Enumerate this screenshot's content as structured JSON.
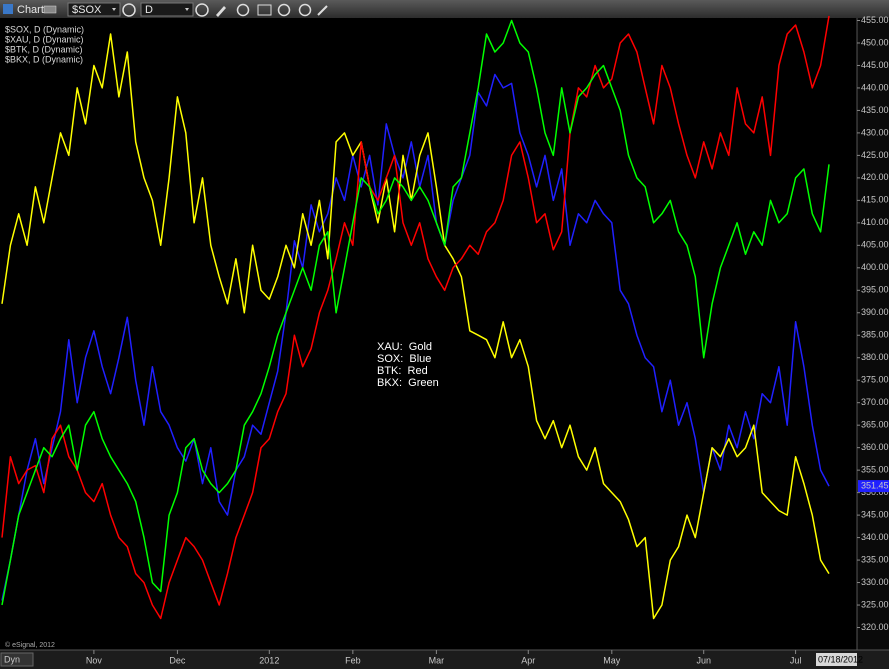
{
  "toolbar": {
    "title": "Chart",
    "symbol": "$SOX",
    "interval": "D"
  },
  "footer": {
    "mode": "Dyn",
    "copyright": "© eSignal, 2012",
    "date": "07/18/2012"
  },
  "chart_data": {
    "type": "line",
    "annotations": [
      "XAU:  Gold",
      "SOX:  Blue",
      "BTK:  Red",
      "BKX:  Green"
    ],
    "categories": [
      null,
      null,
      null,
      null,
      null,
      null,
      null,
      null,
      null,
      null,
      null,
      "Nov",
      null,
      null,
      null,
      null,
      null,
      null,
      null,
      null,
      null,
      "Dec",
      null,
      null,
      null,
      null,
      null,
      null,
      null,
      null,
      null,
      null,
      "2012",
      null,
      null,
      null,
      null,
      null,
      null,
      null,
      null,
      null,
      "Feb",
      null,
      null,
      null,
      null,
      null,
      null,
      null,
      null,
      null,
      "Mar",
      null,
      null,
      null,
      null,
      null,
      null,
      null,
      null,
      null,
      null,
      "Apr",
      null,
      null,
      null,
      null,
      null,
      null,
      null,
      null,
      null,
      "May",
      null,
      null,
      null,
      null,
      null,
      null,
      null,
      null,
      null,
      null,
      "Jun",
      null,
      null,
      null,
      null,
      null,
      null,
      null,
      null,
      null,
      null,
      "Jul",
      null,
      null,
      null,
      null
    ],
    "series": [
      {
        "name": "$SOX, D (Dynamic)",
        "color": "#2020ff",
        "values": [
          326,
          335,
          345,
          355,
          362,
          352,
          360,
          368,
          384,
          370,
          380,
          386,
          378,
          372,
          380,
          389,
          375,
          365,
          378,
          368,
          365,
          360,
          357,
          362,
          352,
          360,
          348,
          345,
          355,
          358,
          365,
          363,
          370,
          377,
          390,
          406,
          400,
          414,
          408,
          412,
          420,
          415,
          425,
          418,
          425,
          414,
          432,
          425,
          420,
          428,
          418,
          425,
          410,
          405,
          415,
          420,
          425,
          439,
          436,
          443,
          440,
          441,
          430,
          425,
          418,
          425,
          415,
          422,
          405,
          412,
          410,
          415,
          412,
          410,
          395,
          392,
          385,
          380,
          378,
          368,
          375,
          365,
          370,
          362,
          350,
          360,
          355,
          365,
          360,
          368,
          362,
          372,
          370,
          378,
          365,
          388,
          378,
          365,
          355,
          351.45
        ]
      },
      {
        "name": "$XAU, D (Dynamic)",
        "color": "#ffff00",
        "values": [
          392,
          405,
          412,
          405,
          418,
          410,
          420,
          430,
          425,
          440,
          432,
          445,
          440,
          452,
          438,
          448,
          428,
          420,
          415,
          405,
          420,
          438,
          430,
          410,
          420,
          405,
          398,
          392,
          402,
          390,
          405,
          395,
          393,
          398,
          405,
          400,
          412,
          405,
          415,
          402,
          428,
          430,
          425,
          428,
          418,
          410,
          420,
          408,
          425,
          415,
          425,
          430,
          418,
          405,
          402,
          398,
          386,
          385,
          384,
          380,
          388,
          380,
          384,
          378,
          366,
          362,
          366,
          360,
          365,
          358,
          355,
          360,
          352,
          350,
          348,
          344,
          338,
          340,
          322,
          325,
          335,
          338,
          345,
          340,
          350,
          360,
          358,
          362,
          358,
          360,
          365,
          350,
          348,
          346,
          345,
          358,
          352,
          345,
          335,
          332
        ]
      },
      {
        "name": "$BTK, D (Dynamic)",
        "color": "#ff0000",
        "values": [
          340,
          358,
          352,
          355,
          356,
          350,
          362,
          365,
          358,
          355,
          350,
          348,
          352,
          345,
          340,
          338,
          332,
          330,
          325,
          322,
          330,
          335,
          340,
          338,
          335,
          330,
          325,
          332,
          340,
          345,
          350,
          360,
          362,
          368,
          372,
          385,
          378,
          382,
          390,
          395,
          402,
          410,
          405,
          428,
          418,
          415,
          420,
          425,
          410,
          405,
          410,
          402,
          398,
          395,
          400,
          402,
          405,
          403,
          408,
          410,
          415,
          425,
          428,
          420,
          410,
          412,
          404,
          408,
          430,
          440,
          438,
          445,
          440,
          442,
          450,
          452,
          448,
          440,
          432,
          445,
          440,
          432,
          425,
          420,
          428,
          422,
          430,
          425,
          440,
          432,
          430,
          438,
          425,
          445,
          452,
          454,
          448,
          440,
          445,
          456
        ]
      },
      {
        "name": "$BKX, D (Dynamic)",
        "color": "#00ff00",
        "values": [
          325,
          335,
          345,
          350,
          355,
          360,
          358,
          362,
          365,
          355,
          365,
          368,
          362,
          358,
          355,
          352,
          348,
          340,
          330,
          328,
          345,
          350,
          360,
          362,
          355,
          352,
          350,
          352,
          355,
          365,
          368,
          372,
          378,
          385,
          390,
          395,
          400,
          395,
          405,
          408,
          390,
          400,
          410,
          420,
          418,
          412,
          415,
          420,
          418,
          415,
          418,
          415,
          410,
          405,
          418,
          420,
          430,
          440,
          452,
          448,
          450,
          455,
          450,
          448,
          440,
          430,
          425,
          440,
          430,
          438,
          440,
          443,
          445,
          440,
          435,
          425,
          420,
          418,
          410,
          412,
          415,
          408,
          405,
          398,
          380,
          392,
          400,
          405,
          410,
          403,
          408,
          405,
          415,
          410,
          412,
          420,
          422,
          412,
          408,
          423
        ]
      }
    ],
    "ylim": [
      315,
      456
    ],
    "yticks": [
      {
        "value": 320,
        "label": "320.00"
      },
      {
        "value": 325,
        "label": "325.00"
      },
      {
        "value": 330,
        "label": "330.00"
      },
      {
        "value": 335,
        "label": "335.00"
      },
      {
        "value": 340,
        "label": "340.00"
      },
      {
        "value": 345,
        "label": "345.00"
      },
      {
        "value": 350,
        "label": "350.00"
      },
      {
        "value": 355,
        "label": "355.00"
      },
      {
        "value": 360,
        "label": "360.00"
      },
      {
        "value": 365,
        "label": "365.00"
      },
      {
        "value": 370,
        "label": "370.00"
      },
      {
        "value": 375,
        "label": "375.00"
      },
      {
        "value": 380,
        "label": "380.00"
      },
      {
        "value": 385,
        "label": "385.00"
      },
      {
        "value": 390,
        "label": "390.00"
      },
      {
        "value": 395,
        "label": "395.00"
      },
      {
        "value": 400,
        "label": "400.00"
      },
      {
        "value": 405,
        "label": "405.00"
      },
      {
        "value": 410,
        "label": "410.00"
      },
      {
        "value": 415,
        "label": "415.00"
      },
      {
        "value": 420,
        "label": "420.00"
      },
      {
        "value": 425,
        "label": "425.00"
      },
      {
        "value": 430,
        "label": "430.00"
      },
      {
        "value": 435,
        "label": "435.00"
      },
      {
        "value": 440,
        "label": "440.00"
      },
      {
        "value": 445,
        "label": "445.00"
      },
      {
        "value": 450,
        "label": "450.00"
      },
      {
        "value": 455,
        "label": "455.00"
      }
    ],
    "grid": false
  }
}
